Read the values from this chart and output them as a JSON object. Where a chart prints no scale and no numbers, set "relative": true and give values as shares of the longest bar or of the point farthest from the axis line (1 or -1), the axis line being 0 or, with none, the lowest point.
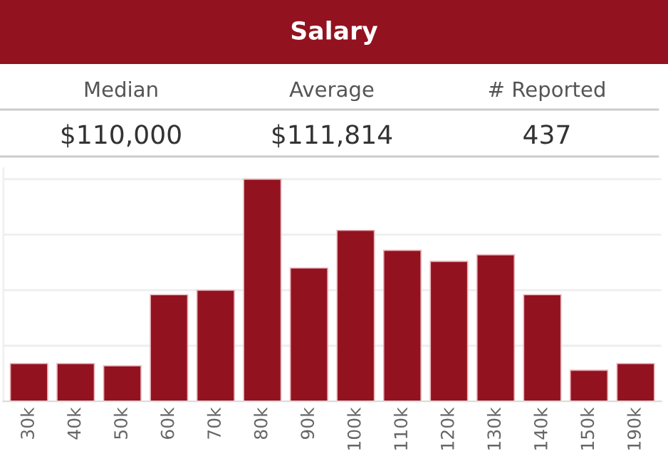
{
  "chart_data": [
    {
      "type": "other",
      "title": "Salary",
      "color": "#93121f",
      "annotations": [
        "Median",
        "$110,000",
        "Average",
        "$111,814",
        "# Reported",
        "437"
      ]
    },
    {
      "type": "bar",
      "categories": [
        "30k",
        "40k",
        "50k",
        "60k",
        "70k",
        "80k",
        "90k",
        "100k",
        "110k",
        "120k",
        "130k",
        "140k",
        "150k",
        "190k"
      ],
      "values": [
        0.17,
        0.17,
        0.16,
        0.48,
        0.5,
        1,
        0.6,
        0.77,
        0.68,
        0.63,
        0.66,
        0.48,
        0.14,
        0.17
      ],
      "color": "#93121f",
      "relative": true,
      "grid": "y"
    }
  ]
}
